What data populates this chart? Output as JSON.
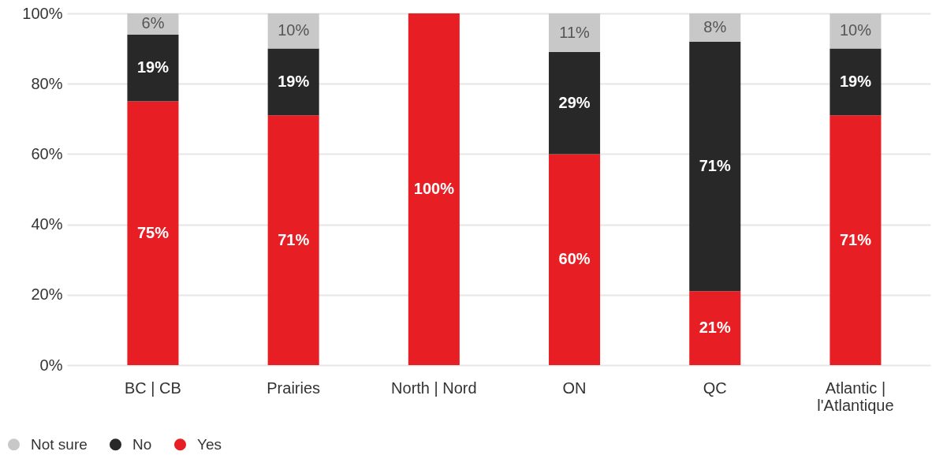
{
  "chart_data": {
    "type": "bar",
    "stacked": true,
    "categories": [
      "BC | CB",
      "Prairies",
      "North | Nord",
      "ON",
      "QC",
      "Atlantic | l'Atlantique"
    ],
    "series": [
      {
        "name": "Yes",
        "color": "#e81e25",
        "values": [
          75,
          71,
          100,
          60,
          21,
          71
        ],
        "value_labels": [
          "75%",
          "71%",
          "100%",
          "60%",
          "21%",
          "71%"
        ]
      },
      {
        "name": "No",
        "color": "#282828",
        "values": [
          19,
          19,
          0,
          29,
          71,
          19
        ],
        "value_labels": [
          "19%",
          "19%",
          null,
          "29%",
          "71%",
          "19%"
        ]
      },
      {
        "name": "Not sure",
        "color": "#c8c8c8",
        "values": [
          6,
          10,
          0,
          11,
          8,
          10
        ],
        "value_labels": [
          "6%",
          "10%",
          null,
          "11%",
          "8%",
          "10%"
        ]
      }
    ],
    "ylim": [
      0,
      100
    ],
    "yticks": [
      {
        "value": 0,
        "label": "0%"
      },
      {
        "value": 20,
        "label": "20%"
      },
      {
        "value": 40,
        "label": "40%"
      },
      {
        "value": 60,
        "label": "60%"
      },
      {
        "value": 80,
        "label": "80%"
      },
      {
        "value": 100,
        "label": "100%"
      }
    ],
    "grid": "y",
    "legend": "bottom left"
  }
}
